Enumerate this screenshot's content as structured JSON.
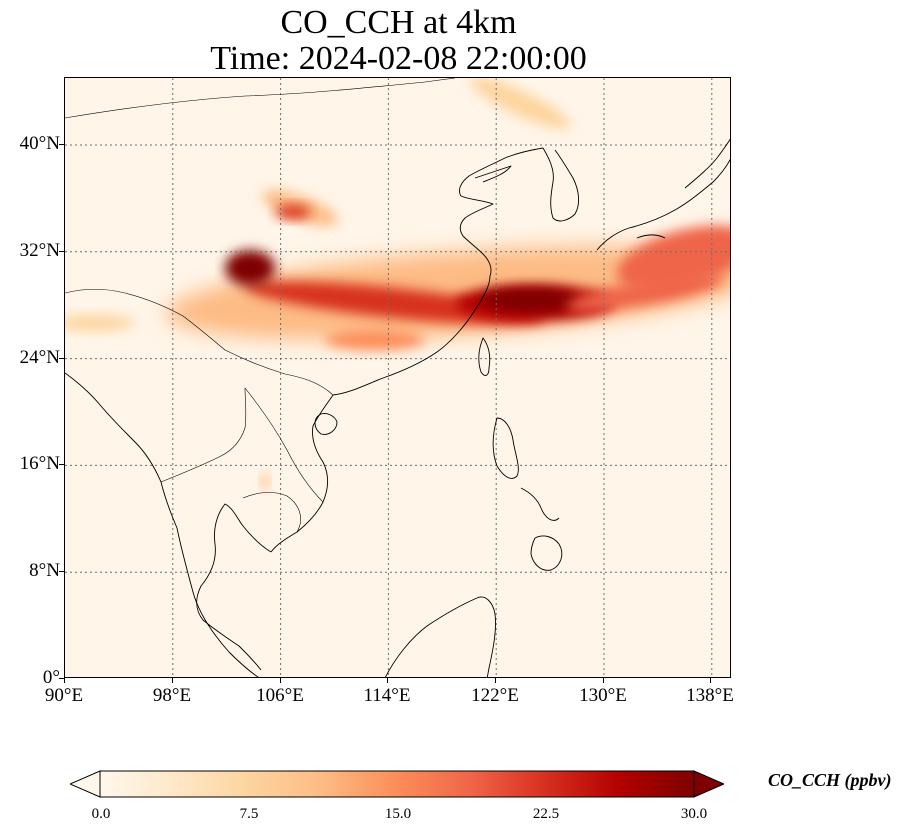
{
  "title": {
    "line1": "CO_CCH at 4km",
    "line2": "Time: 2024-02-08 22:00:00"
  },
  "map": {
    "extent": {
      "lon_min": 90,
      "lon_max": 139.5,
      "lat_min": 0,
      "lat_max": 45
    },
    "lon_ticks": [
      {
        "value": 90,
        "label": "90°E"
      },
      {
        "value": 98,
        "label": "98°E"
      },
      {
        "value": 106,
        "label": "106°E"
      },
      {
        "value": 114,
        "label": "114°E"
      },
      {
        "value": 122,
        "label": "122°E"
      },
      {
        "value": 130,
        "label": "130°E"
      },
      {
        "value": 138,
        "label": "138°E"
      }
    ],
    "lat_ticks": [
      {
        "value": 0,
        "label": "0°"
      },
      {
        "value": 8,
        "label": "8°N"
      },
      {
        "value": 16,
        "label": "16°N"
      },
      {
        "value": 24,
        "label": "24°N"
      },
      {
        "value": 32,
        "label": "32°N"
      },
      {
        "value": 40,
        "label": "40°N"
      }
    ],
    "gridlines": true,
    "colormap": "OrRd"
  },
  "colorbar": {
    "label": "CO_CCH (ppbv)",
    "min": 0.0,
    "max": 30.0,
    "extend": "both",
    "ticks": [
      {
        "value": 0,
        "label": "0.0"
      },
      {
        "value": 7.5,
        "label": "7.5"
      },
      {
        "value": 15,
        "label": "15.0"
      },
      {
        "value": 22.5,
        "label": "22.5"
      },
      {
        "value": 30,
        "label": "30.0"
      }
    ],
    "colors": [
      "#fff7ec",
      "#fee8c8",
      "#fdd49e",
      "#fdbb84",
      "#fc8d59",
      "#ef6548",
      "#d7301f",
      "#b30000",
      "#7f0000"
    ]
  }
}
